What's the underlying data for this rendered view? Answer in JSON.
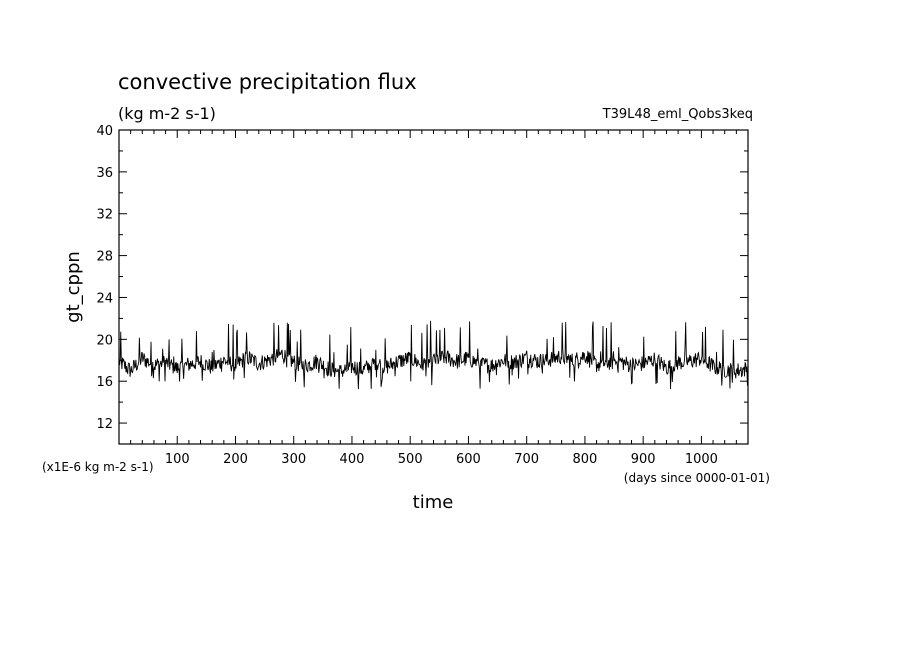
{
  "chart_data": {
    "type": "line",
    "title": "convective precipitation flux",
    "subtitle": "(kg m-2 s-1)",
    "run_label": "T39L48_eml_Qobs3keq",
    "xlabel": "time",
    "ylabel": "gt_cppn",
    "x_unit_note": "(days since 0000-01-01)",
    "y_scale_note": "(x1E-6 kg m-2 s-1)",
    "xlim": [
      0,
      1080
    ],
    "ylim": [
      10,
      40
    ],
    "x_ticks": [
      "100",
      "200",
      "300",
      "400",
      "500",
      "600",
      "700",
      "800",
      "900",
      "1000"
    ],
    "y_ticks": [
      "12",
      "16",
      "20",
      "24",
      "28",
      "32",
      "36",
      "40"
    ],
    "grid": false,
    "series": [
      {
        "color": "#000000",
        "x": [
          0,
          20,
          40,
          60,
          80,
          100,
          120,
          140,
          160,
          180,
          200,
          220,
          240,
          260,
          280,
          300,
          320,
          340,
          360,
          380,
          400,
          420,
          440,
          460,
          480,
          500,
          520,
          540,
          560,
          580,
          600,
          620,
          640,
          660,
          680,
          700,
          720,
          740,
          760,
          780,
          800,
          820,
          840,
          860,
          880,
          900,
          920,
          940,
          960,
          980,
          1000,
          1020,
          1040,
          1060,
          1080
        ],
        "values": [
          17.9,
          17.0,
          18.2,
          17.5,
          17.8,
          17.2,
          17.6,
          17.9,
          17.3,
          18.0,
          17.5,
          18.3,
          17.7,
          18.1,
          18.6,
          17.8,
          17.5,
          17.9,
          17.2,
          16.9,
          17.4,
          17.1,
          17.8,
          17.4,
          17.9,
          18.2,
          17.6,
          18.0,
          18.3,
          17.9,
          18.2,
          17.6,
          17.5,
          18.0,
          17.8,
          18.3,
          17.9,
          18.1,
          18.4,
          17.9,
          18.5,
          17.6,
          17.8,
          17.9,
          17.5,
          17.7,
          18.1,
          17.3,
          17.8,
          17.9,
          18.2,
          17.4,
          17.1,
          17.0,
          17.2
        ]
      }
    ]
  }
}
